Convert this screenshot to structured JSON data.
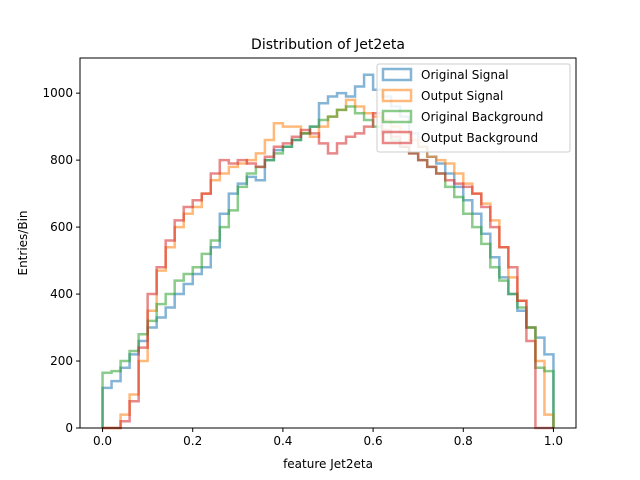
{
  "chart_data": {
    "type": "step-histogram",
    "title": "Distribution of Jet2eta",
    "xlabel": "feature Jet2eta",
    "ylabel": "Entries/Bin",
    "xlim": [
      -0.05,
      1.05
    ],
    "ylim": [
      0,
      1105
    ],
    "xticks": [
      0.0,
      0.2,
      0.4,
      0.6,
      0.8,
      1.0
    ],
    "xtick_labels": [
      "0.0",
      "0.2",
      "0.4",
      "0.6",
      "0.8",
      "1.0"
    ],
    "yticks": [
      0,
      200,
      400,
      600,
      800,
      1000
    ],
    "ytick_labels": [
      "0",
      "200",
      "400",
      "600",
      "800",
      "1000"
    ],
    "bins": 50,
    "bin_range": [
      0.0,
      1.0
    ],
    "legend_position": "top-right",
    "series": [
      {
        "name": "Original Signal",
        "color": "#1f77b4",
        "values": [
          120,
          140,
          180,
          220,
          260,
          300,
          330,
          360,
          400,
          430,
          460,
          480,
          540,
          640,
          700,
          730,
          750,
          740,
          800,
          830,
          840,
          860,
          880,
          900,
          970,
          990,
          1000,
          990,
          1020,
          1055,
          1010,
          990,
          960,
          930,
          880,
          840,
          810,
          790,
          760,
          720,
          680,
          640,
          580,
          510,
          450,
          400,
          350,
          300,
          270,
          220
        ]
      },
      {
        "name": "Output Signal",
        "color": "#ff7f0e",
        "values": [
          0,
          0,
          40,
          100,
          200,
          350,
          470,
          540,
          600,
          640,
          660,
          700,
          740,
          760,
          780,
          790,
          800,
          820,
          860,
          910,
          900,
          900,
          880,
          870,
          900,
          930,
          950,
          980,
          960,
          940,
          930,
          920,
          900,
          880,
          860,
          840,
          810,
          800,
          790,
          760,
          730,
          700,
          670,
          620,
          540,
          450,
          380,
          300,
          200,
          40
        ]
      },
      {
        "name": "Original Background",
        "color": "#2ca02c",
        "values": [
          165,
          170,
          200,
          230,
          280,
          320,
          370,
          400,
          440,
          460,
          480,
          520,
          560,
          600,
          650,
          720,
          760,
          780,
          800,
          820,
          840,
          860,
          880,
          900,
          920,
          930,
          950,
          960,
          940,
          920,
          900,
          880,
          860,
          840,
          820,
          800,
          780,
          760,
          720,
          690,
          640,
          600,
          550,
          480,
          440,
          400,
          360,
          300,
          180,
          170
        ]
      },
      {
        "name": "Output Background",
        "color": "#d62728",
        "values": [
          0,
          0,
          20,
          80,
          240,
          400,
          480,
          560,
          620,
          660,
          680,
          700,
          760,
          800,
          790,
          800,
          790,
          780,
          810,
          840,
          850,
          870,
          890,
          880,
          850,
          820,
          850,
          870,
          880,
          900,
          940,
          890,
          870,
          840,
          820,
          800,
          780,
          760,
          740,
          730,
          720,
          700,
          660,
          600,
          540,
          480,
          380,
          260,
          0,
          0
        ]
      }
    ]
  }
}
